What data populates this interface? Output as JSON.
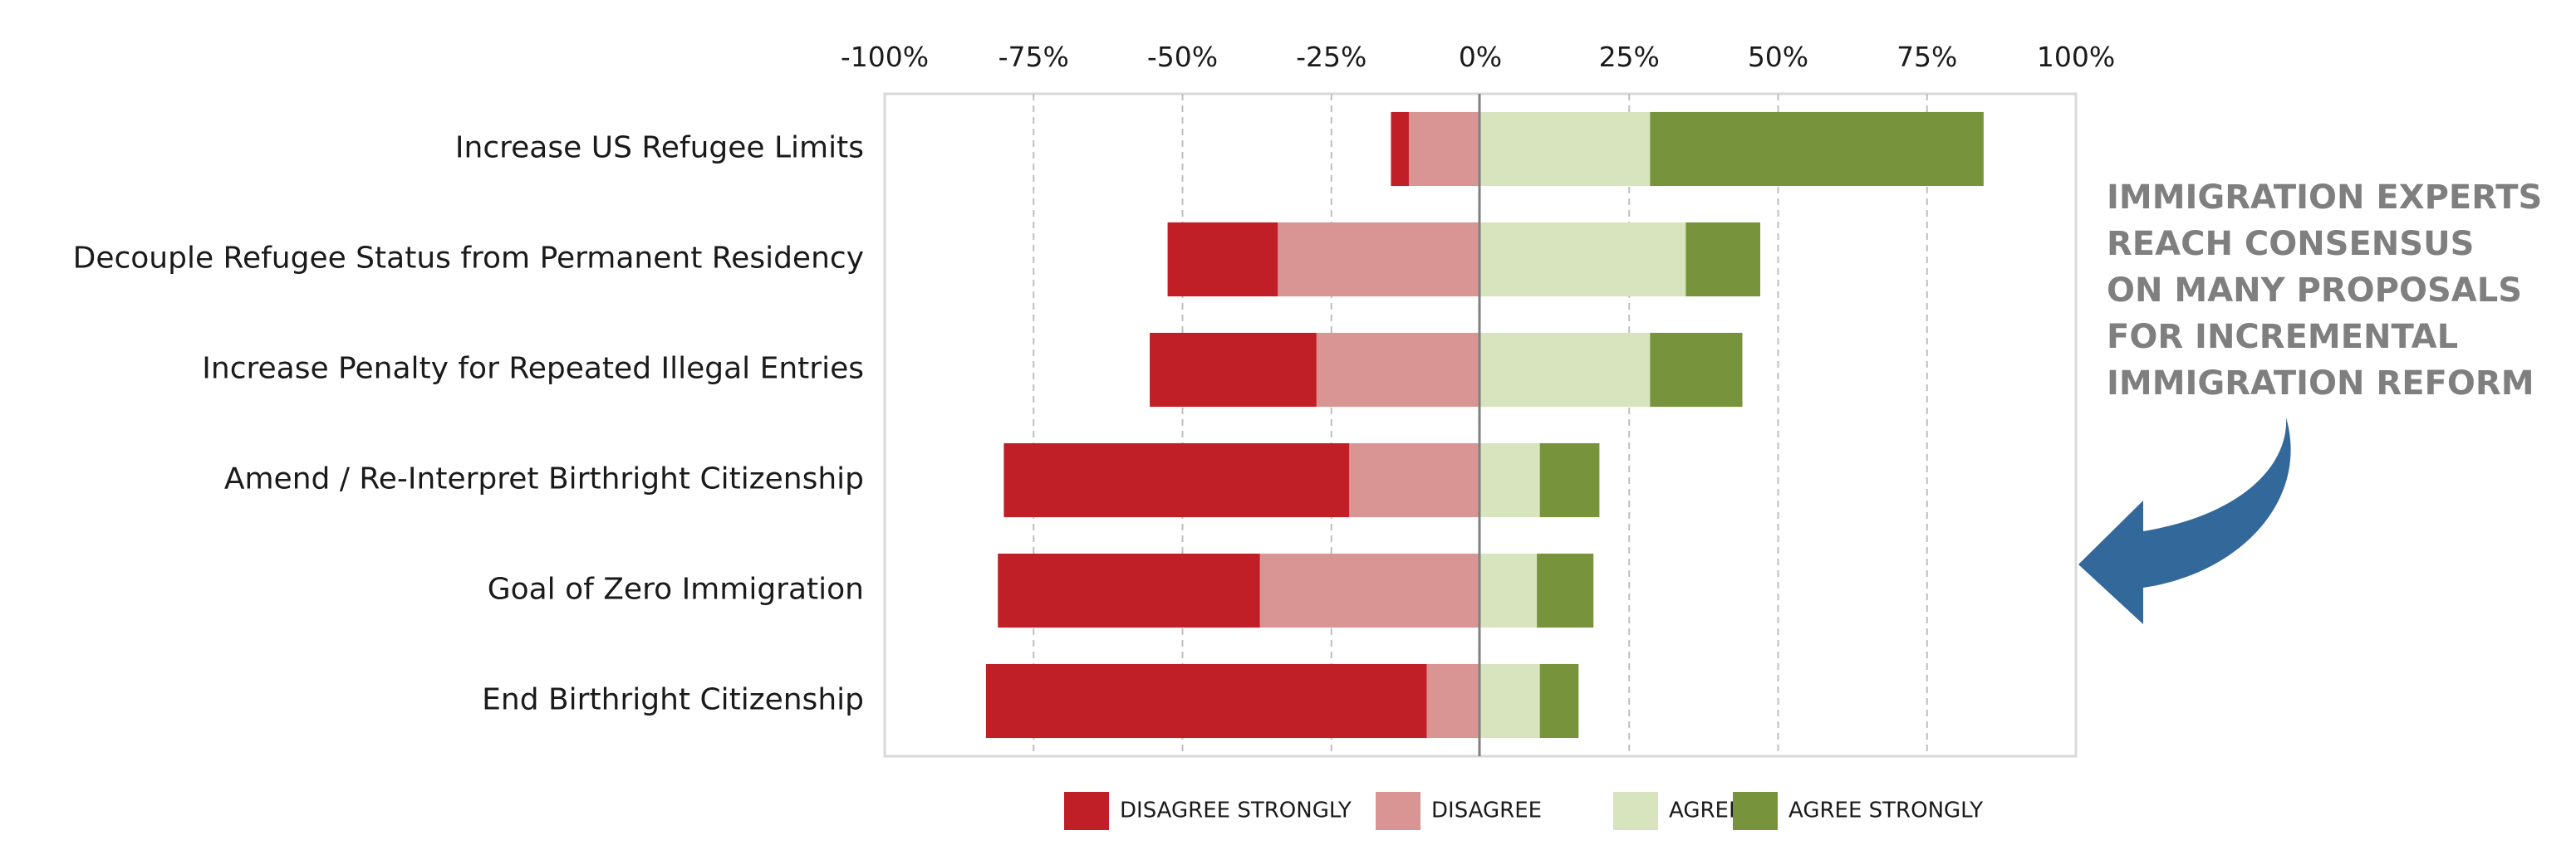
{
  "chart_data": {
    "type": "bar",
    "orientation": "horizontal-diverging-stacked",
    "categories": [
      "Increase US Refugee Limits",
      "Decouple Refugee Status from Permanent Residency",
      "Increase Penalty for Repeated Illegal Entries",
      "Amend / Re-Interpret Birthright Citizenship",
      "Goal of Zero Immigration",
      "End Birthright Citizenship"
    ],
    "series": [
      {
        "name": "DISAGREE STRONGLY",
        "values": [
          -3,
          -18.5,
          -28,
          -58,
          -44,
          -74
        ],
        "color": "#c01f27"
      },
      {
        "name": "DISAGREE",
        "values": [
          -12,
          -34,
          -27.5,
          -22,
          -37,
          -9
        ],
        "color": "#d99594"
      },
      {
        "name": "AGREE",
        "values": [
          28.5,
          34.5,
          28.5,
          10,
          9.5,
          10
        ],
        "color": "#d7e4bd"
      },
      {
        "name": "AGREE STRONGLY",
        "values": [
          56,
          12.5,
          15.5,
          10,
          9.5,
          6.5
        ],
        "color": "#77933c"
      }
    ],
    "x_ticks": [
      "-100%",
      "-75%",
      "-50%",
      "-25%",
      "0%",
      "25%",
      "50%",
      "75%",
      "100%"
    ],
    "xlim": [
      -100,
      100
    ],
    "grid": true,
    "legend_position": "bottom"
  },
  "annotation": {
    "lines": [
      "IMMIGRATION EXPERTS",
      "REACH CONSENSUS",
      "ON MANY PROPOSALS",
      "FOR INCREMENTAL",
      "IMMIGRATION REFORM"
    ],
    "color": "#7f7f7f",
    "arrow_color": "#33689a",
    "arrow_icon": "curved-arrow-left-icon"
  }
}
